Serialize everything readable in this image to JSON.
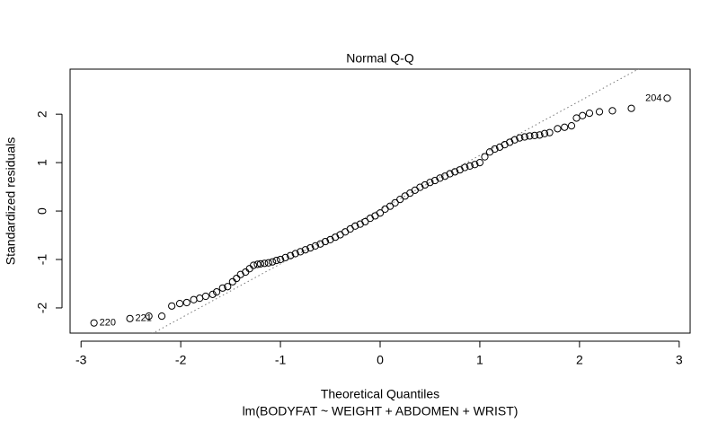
{
  "chart_data": {
    "type": "qq",
    "title": "Normal Q-Q",
    "x_label": "Theoretical Quantiles",
    "subtitle": "lm(BODYFAT ~ WEIGHT + ABDOMEN + WRIST)",
    "y_label": "Standardized residuals",
    "xlim": [
      -3.11,
      3.11
    ],
    "ylim": [
      -2.52,
      2.93
    ],
    "xticks": [
      -3,
      -2,
      -1,
      0,
      1,
      2,
      3
    ],
    "yticks": [
      -2,
      -1,
      0,
      1,
      2
    ],
    "color": "#000000",
    "reference_line": {
      "intercept": 0.03,
      "slope": 1.12
    },
    "x": [
      -2.87,
      -2.51,
      -2.32,
      -2.19,
      -2.09,
      -2.01,
      -1.94,
      -1.87,
      -1.81,
      -1.75,
      -1.68,
      -1.64,
      -1.58,
      -1.53,
      -1.48,
      -1.44,
      -1.4,
      -1.35,
      -1.31,
      -1.27,
      -1.23,
      -1.2,
      -1.16,
      -1.12,
      -1.08,
      -1.04,
      -1.0,
      -0.95,
      -0.9,
      -0.85,
      -0.8,
      -0.75,
      -0.7,
      -0.65,
      -0.6,
      -0.55,
      -0.5,
      -0.45,
      -0.4,
      -0.35,
      -0.3,
      -0.25,
      -0.2,
      -0.15,
      -0.1,
      -0.05,
      0,
      0.05,
      0.1,
      0.15,
      0.2,
      0.25,
      0.3,
      0.35,
      0.4,
      0.45,
      0.5,
      0.55,
      0.6,
      0.65,
      0.7,
      0.75,
      0.8,
      0.85,
      0.9,
      0.95,
      1.0,
      1.05,
      1.1,
      1.15,
      1.2,
      1.25,
      1.3,
      1.35,
      1.4,
      1.45,
      1.5,
      1.55,
      1.6,
      1.65,
      1.7,
      1.78,
      1.85,
      1.92,
      1.97,
      2.03,
      2.1,
      2.2,
      2.33,
      2.52,
      2.88
    ],
    "values": [
      -2.31,
      -2.22,
      -2.17,
      -2.17,
      -1.96,
      -1.91,
      -1.89,
      -1.83,
      -1.8,
      -1.76,
      -1.72,
      -1.67,
      -1.59,
      -1.56,
      -1.46,
      -1.39,
      -1.31,
      -1.26,
      -1.19,
      -1.12,
      -1.1,
      -1.09,
      -1.08,
      -1.07,
      -1.05,
      -1.02,
      -1.0,
      -0.96,
      -0.92,
      -0.88,
      -0.84,
      -0.8,
      -0.76,
      -0.72,
      -0.68,
      -0.63,
      -0.59,
      -0.54,
      -0.49,
      -0.43,
      -0.37,
      -0.31,
      -0.27,
      -0.22,
      -0.15,
      -0.1,
      -0.04,
      0.04,
      0.1,
      0.17,
      0.24,
      0.31,
      0.37,
      0.43,
      0.49,
      0.54,
      0.59,
      0.63,
      0.68,
      0.72,
      0.77,
      0.81,
      0.85,
      0.9,
      0.93,
      0.96,
      1.0,
      1.12,
      1.22,
      1.28,
      1.32,
      1.37,
      1.42,
      1.47,
      1.51,
      1.53,
      1.55,
      1.56,
      1.57,
      1.6,
      1.62,
      1.7,
      1.73,
      1.76,
      1.92,
      1.97,
      2.02,
      2.05,
      2.07,
      2.12,
      2.33
    ],
    "point_labels": {
      "0": "220",
      "1": "221",
      "90": "204"
    }
  }
}
